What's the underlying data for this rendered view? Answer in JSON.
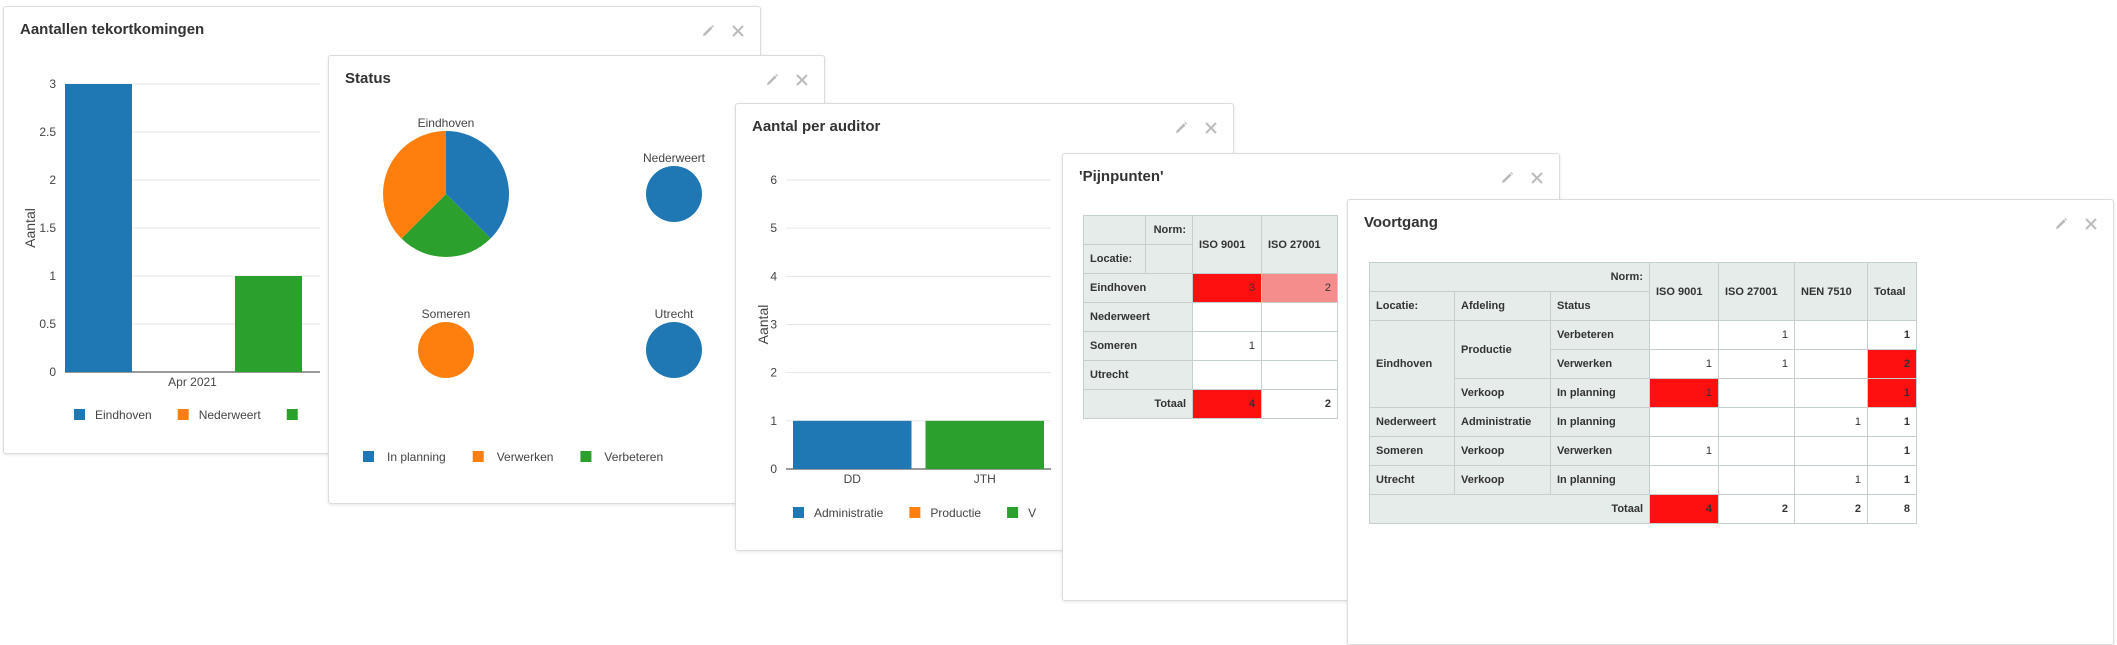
{
  "colors": {
    "blue": "#1f77b4",
    "orange": "#ff7f0e",
    "green": "#2ca02c",
    "heat_high": "#ff1010",
    "heat_mid": "#f58d8d",
    "table_header": "#e5ecea"
  },
  "icons": {
    "edit": "pencil-icon",
    "close": "close-icon"
  },
  "panels": {
    "tekort": {
      "title": "Aantallen tekortkomingen"
    },
    "status": {
      "title": "Status"
    },
    "auditor": {
      "title": "Aantal per auditor"
    },
    "pijn": {
      "title": "'Pijnpunten'"
    },
    "voort": {
      "title": "Voortgang"
    }
  },
  "chart_data": [
    {
      "id": "tekort",
      "type": "bar",
      "categories": [
        "Apr 2021"
      ],
      "series": [
        {
          "name": "Eindhoven",
          "color": "#1f77b4",
          "values": [
            3
          ]
        },
        {
          "name": "Nederweert",
          "color": "#ff7f0e",
          "values": [
            0
          ]
        },
        {
          "name": "",
          "color": "#2ca02c",
          "values": [
            1
          ]
        }
      ],
      "ylabel": "Aantal",
      "ylim": [
        0,
        3
      ],
      "yticks": [
        "0",
        "0.5",
        "1",
        "1.5",
        "2",
        "2.5",
        "3"
      ],
      "grid": true,
      "legend": "bottom"
    },
    {
      "id": "status",
      "type": "pie",
      "pies": [
        {
          "label": "Eindhoven",
          "slices": [
            {
              "name": "In planning",
              "value": 0.375,
              "color": "#1f77b4"
            },
            {
              "name": "Verbeteren",
              "value": 0.25,
              "color": "#2ca02c"
            },
            {
              "name": "Verwerken",
              "value": 0.375,
              "color": "#ff7f0e"
            }
          ]
        },
        {
          "label": "Nederweert",
          "slices": [
            {
              "name": "In planning",
              "value": 1,
              "color": "#1f77b4"
            }
          ]
        },
        {
          "label": "Someren",
          "slices": [
            {
              "name": "Verwerken",
              "value": 1,
              "color": "#ff7f0e"
            }
          ]
        },
        {
          "label": "Utrecht",
          "slices": [
            {
              "name": "In planning",
              "value": 1,
              "color": "#1f77b4"
            }
          ]
        }
      ],
      "legend_items": [
        {
          "name": "In planning",
          "color": "#1f77b4"
        },
        {
          "name": "Verwerken",
          "color": "#ff7f0e"
        },
        {
          "name": "Verbeteren",
          "color": "#2ca02c"
        }
      ],
      "legend": "bottom"
    },
    {
      "id": "auditor",
      "type": "bar",
      "categories": [
        "DD",
        "JTH"
      ],
      "series": [
        {
          "name": "Administratie",
          "color": "#1f77b4",
          "values": [
            1,
            0
          ]
        },
        {
          "name": "Productie",
          "color": "#ff7f0e",
          "values": [
            0,
            0
          ]
        },
        {
          "name": "V",
          "color": "#2ca02c",
          "values": [
            0,
            1
          ]
        }
      ],
      "ylabel": "Aantal",
      "ylim": [
        0,
        6
      ],
      "yticks": [
        "0",
        "1",
        "2",
        "3",
        "4",
        "5",
        "6"
      ],
      "grid": true,
      "legend": "bottom"
    },
    {
      "id": "pijnpunten",
      "type": "table",
      "norm_label": "Norm:",
      "location_label": "Locatie:",
      "columns": [
        "ISO 9001",
        "ISO 27001"
      ],
      "rows": [
        {
          "label": "Eindhoven",
          "values": [
            "3",
            "2"
          ]
        },
        {
          "label": "Nederweert",
          "values": [
            "",
            ""
          ]
        },
        {
          "label": "Someren",
          "values": [
            "1",
            ""
          ]
        },
        {
          "label": "Utrecht",
          "values": [
            "",
            ""
          ]
        }
      ],
      "total_label": "Totaal",
      "totals": [
        "4",
        "2"
      ]
    },
    {
      "id": "voortgang",
      "type": "table",
      "norm_label": "Norm:",
      "row_headers": [
        "Locatie:",
        "Afdeling",
        "Status"
      ],
      "columns": [
        "ISO 9001",
        "ISO 27001",
        "NEN 7510",
        "Totaal"
      ],
      "groups": [
        {
          "location": "Eindhoven",
          "depts": [
            {
              "name": "Productie",
              "rows": [
                {
                  "status": "Verbeteren",
                  "values": [
                    "",
                    "1",
                    "",
                    "1"
                  ]
                },
                {
                  "status": "Verwerken",
                  "values": [
                    "1",
                    "1",
                    "",
                    "2"
                  ]
                }
              ]
            },
            {
              "name": "Verkoop",
              "rows": [
                {
                  "status": "In planning",
                  "values": [
                    "1",
                    "",
                    "",
                    "1"
                  ]
                }
              ]
            }
          ]
        },
        {
          "location": "Nederweert",
          "depts": [
            {
              "name": "Administratie",
              "rows": [
                {
                  "status": "In planning",
                  "values": [
                    "",
                    "",
                    "1",
                    "1"
                  ]
                }
              ]
            }
          ]
        },
        {
          "location": "Someren",
          "depts": [
            {
              "name": "Verkoop",
              "rows": [
                {
                  "status": "Verwerken",
                  "values": [
                    "1",
                    "",
                    "",
                    "1"
                  ]
                }
              ]
            }
          ]
        },
        {
          "location": "Utrecht",
          "depts": [
            {
              "name": "Verkoop",
              "rows": [
                {
                  "status": "In planning",
                  "values": [
                    "",
                    "",
                    "1",
                    "1"
                  ]
                }
              ]
            }
          ]
        }
      ],
      "total_label": "Totaal",
      "totals": [
        "4",
        "2",
        "2",
        "8"
      ]
    }
  ]
}
